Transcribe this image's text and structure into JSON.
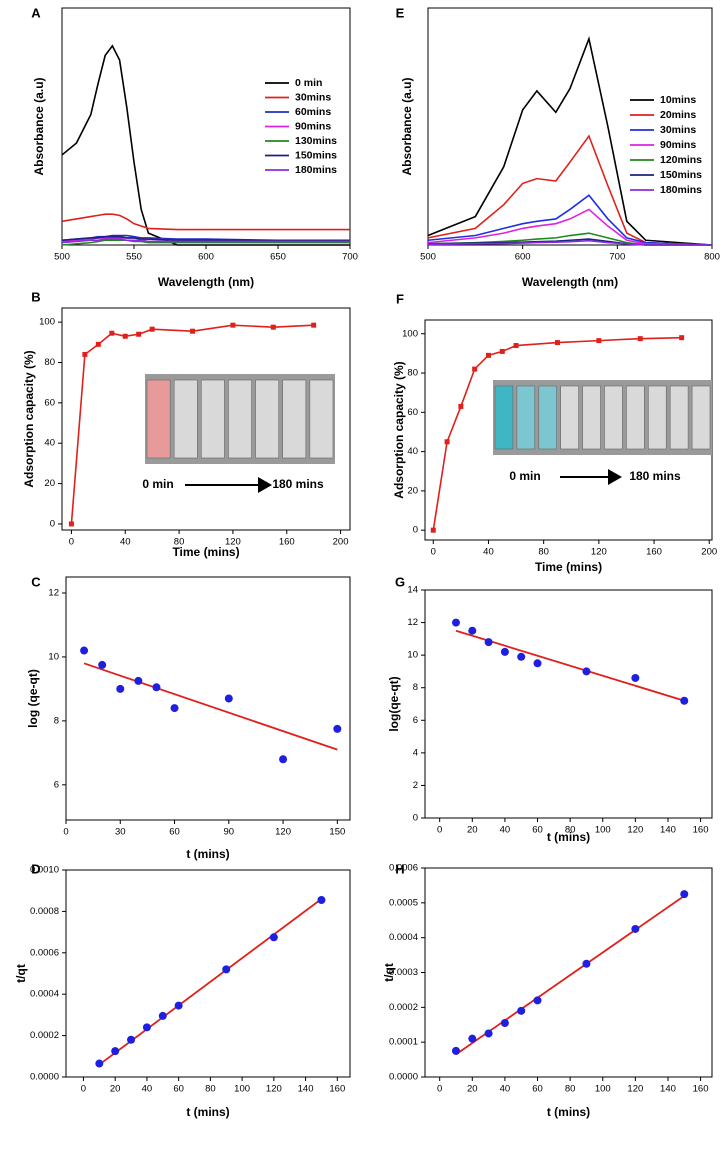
{
  "chart_data": [
    {
      "type": "line",
      "label": "A",
      "xlabel": "Wavelength (nm)",
      "ylabel": "Absorbance (a.u)",
      "xlim": [
        500,
        700
      ],
      "xticks": [
        500,
        550,
        600,
        650,
        700
      ],
      "ylim": [
        0,
        1
      ],
      "legend": "right",
      "x": [
        500,
        510,
        520,
        525,
        530,
        535,
        540,
        545,
        550,
        555,
        560,
        580,
        600,
        650,
        700
      ],
      "series": [
        {
          "name": "0 min",
          "color": "#000000",
          "values": [
            0.38,
            0.43,
            0.55,
            0.68,
            0.8,
            0.84,
            0.78,
            0.58,
            0.35,
            0.15,
            0.05,
            0.0,
            0.0,
            0.0,
            0.0
          ]
        },
        {
          "name": "30mins",
          "color": "#e0201b",
          "values": [
            0.1,
            0.11,
            0.12,
            0.125,
            0.13,
            0.13,
            0.125,
            0.11,
            0.09,
            0.08,
            0.07,
            0.065,
            0.065,
            0.065,
            0.065
          ]
        },
        {
          "name": "60mins",
          "color": "#1f2fbf",
          "values": [
            0.02,
            0.025,
            0.03,
            0.035,
            0.035,
            0.04,
            0.04,
            0.04,
            0.035,
            0.03,
            0.03,
            0.025,
            0.025,
            0.02,
            0.02
          ]
        },
        {
          "name": "90mins",
          "color": "#e020e0",
          "values": [
            0.015,
            0.02,
            0.025,
            0.03,
            0.03,
            0.03,
            0.03,
            0.03,
            0.03,
            0.025,
            0.025,
            0.02,
            0.02,
            0.02,
            0.02
          ]
        },
        {
          "name": "130mins",
          "color": "#1e8a1e",
          "values": [
            0.0,
            0.005,
            0.01,
            0.015,
            0.02,
            0.02,
            0.02,
            0.02,
            0.015,
            0.015,
            0.01,
            0.01,
            0.01,
            0.01,
            0.01
          ]
        },
        {
          "name": "150mins",
          "color": "#1a237e",
          "values": [
            0.02,
            0.025,
            0.03,
            0.03,
            0.035,
            0.035,
            0.035,
            0.03,
            0.03,
            0.025,
            0.025,
            0.02,
            0.02,
            0.02,
            0.02
          ]
        },
        {
          "name": "180mins",
          "color": "#8a2be2",
          "values": [
            0.01,
            0.015,
            0.02,
            0.02,
            0.025,
            0.025,
            0.025,
            0.02,
            0.02,
            0.02,
            0.015,
            0.015,
            0.015,
            0.015,
            0.015
          ]
        }
      ]
    },
    {
      "type": "line",
      "label": "B",
      "xlabel": "Time (mins)",
      "ylabel": "Adsorption capacity (%)",
      "marker": "square",
      "xlim": [
        -7,
        207
      ],
      "xticks": [
        0,
        40,
        80,
        120,
        160,
        200
      ],
      "ylim": [
        -3,
        107
      ],
      "yticks": [
        0,
        20,
        40,
        60,
        80,
        100
      ],
      "annotations": [
        "0 min",
        "180 mins"
      ],
      "x": [
        0,
        10,
        20,
        30,
        40,
        50,
        60,
        90,
        120,
        150,
        180
      ],
      "series": [
        {
          "color": "#e0201b",
          "values": [
            0,
            84,
            89,
            94.5,
            93,
            94,
            96.5,
            95.5,
            98.5,
            97.5,
            98.5
          ]
        }
      ]
    },
    {
      "type": "scatter",
      "label": "C",
      "xlabel": "t (mins)",
      "ylabel": "log (qe-qt)",
      "xlim": [
        0,
        157
      ],
      "xticks": [
        0,
        30,
        60,
        90,
        120,
        150
      ],
      "ylim": [
        4.9,
        12.5
      ],
      "yticks": [
        6,
        8,
        10,
        12
      ],
      "color": "#1f1fe0",
      "x": [
        10,
        20,
        30,
        40,
        50,
        60,
        90,
        120,
        150
      ],
      "values": [
        10.2,
        9.75,
        9.0,
        9.25,
        9.05,
        8.4,
        8.7,
        6.8,
        7.75
      ],
      "fit": {
        "color": "#e0201b",
        "x": [
          10,
          150
        ],
        "values": [
          9.8,
          7.1
        ]
      }
    },
    {
      "type": "scatter",
      "label": "D",
      "xlabel": "t (mins)",
      "ylabel": "t/qt",
      "xlim": [
        -11,
        168
      ],
      "xticks": [
        0,
        20,
        40,
        60,
        80,
        100,
        120,
        140,
        160
      ],
      "ylim": [
        0,
        0.001
      ],
      "yticks": [
        {
          "value": 0,
          "label": "0.0000"
        },
        {
          "value": 0.0002,
          "label": "0.0002"
        },
        {
          "value": 0.0004,
          "label": "0.0004"
        },
        {
          "value": 0.0006,
          "label": "0.0006"
        },
        {
          "value": 0.0008,
          "label": "0.0008"
        },
        {
          "value": 0.001,
          "label": "0.0010"
        }
      ],
      "color": "#1f1fe0",
      "x": [
        10,
        20,
        30,
        40,
        50,
        60,
        90,
        120,
        150
      ],
      "values": [
        6.5e-05,
        0.000125,
        0.00018,
        0.00024,
        0.000295,
        0.000345,
        0.00052,
        0.000675,
        0.000855
      ],
      "fit": {
        "color": "#e0201b",
        "x": [
          10,
          150
        ],
        "values": [
          6e-05,
          0.00086
        ]
      }
    },
    {
      "type": "line",
      "label": "E",
      "xlabel": "Wavelength (nm)",
      "ylabel": "Absorbance (a.u)",
      "xlim": [
        500,
        800
      ],
      "xticks": [
        500,
        600,
        700,
        800
      ],
      "ylim": [
        0,
        1
      ],
      "legend": "right",
      "x": [
        500,
        550,
        580,
        600,
        615,
        635,
        650,
        670,
        690,
        710,
        730,
        800
      ],
      "series": [
        {
          "name": "10mins",
          "color": "#000000",
          "values": [
            0.04,
            0.12,
            0.33,
            0.57,
            0.65,
            0.56,
            0.66,
            0.87,
            0.5,
            0.1,
            0.02,
            0.0
          ]
        },
        {
          "name": "20mins",
          "color": "#e0201b",
          "values": [
            0.03,
            0.07,
            0.17,
            0.26,
            0.28,
            0.27,
            0.35,
            0.46,
            0.25,
            0.05,
            0.01,
            0.0
          ]
        },
        {
          "name": "30mins",
          "color": "#1f2fe0",
          "values": [
            0.02,
            0.04,
            0.07,
            0.09,
            0.1,
            0.11,
            0.15,
            0.21,
            0.11,
            0.03,
            0.01,
            0.0
          ]
        },
        {
          "name": "90mins",
          "color": "#e020e0",
          "values": [
            0.01,
            0.03,
            0.05,
            0.07,
            0.08,
            0.09,
            0.11,
            0.15,
            0.08,
            0.02,
            0.005,
            0.0
          ]
        },
        {
          "name": "120mins",
          "color": "#1e8a1e",
          "values": [
            0.005,
            0.01,
            0.015,
            0.02,
            0.025,
            0.03,
            0.04,
            0.05,
            0.03,
            0.01,
            0.0,
            0.0
          ]
        },
        {
          "name": "150mins",
          "color": "#1a237e",
          "values": [
            0.005,
            0.008,
            0.01,
            0.012,
            0.014,
            0.016,
            0.02,
            0.025,
            0.015,
            0.005,
            0.0,
            0.0
          ]
        },
        {
          "name": "180mins",
          "color": "#8a2be2",
          "values": [
            0.003,
            0.005,
            0.006,
            0.008,
            0.01,
            0.012,
            0.014,
            0.018,
            0.01,
            0.005,
            0.0,
            0.0
          ]
        }
      ]
    },
    {
      "type": "line",
      "label": "F",
      "xlabel": "Time (mins)",
      "ylabel": "Adsorption capacity (%)",
      "marker": "square",
      "xlim": [
        -6,
        202
      ],
      "xticks": [
        0,
        40,
        80,
        120,
        160,
        200
      ],
      "ylim": [
        -5,
        107
      ],
      "yticks": [
        0,
        20,
        40,
        60,
        80,
        100
      ],
      "annotations": [
        "0 min",
        "180 mins"
      ],
      "x": [
        0,
        10,
        20,
        30,
        40,
        50,
        60,
        90,
        120,
        150,
        180
      ],
      "series": [
        {
          "color": "#e0201b",
          "values": [
            0,
            45,
            63,
            82,
            89,
            91,
            94,
            95.5,
            96.5,
            97.5,
            98
          ]
        }
      ]
    },
    {
      "type": "scatter",
      "label": "G",
      "xlabel": "t (mins)",
      "ylabel": "log(qe-qt)",
      "xlim": [
        -9,
        167
      ],
      "xticks": [
        0,
        20,
        40,
        60,
        80,
        100,
        120,
        140,
        160
      ],
      "ylim": [
        0,
        14
      ],
      "yticks": [
        0,
        2,
        4,
        6,
        8,
        10,
        12,
        14
      ],
      "color": "#1f1fe0",
      "x": [
        10,
        20,
        30,
        40,
        50,
        60,
        90,
        120,
        150
      ],
      "values": [
        12.0,
        11.5,
        10.8,
        10.2,
        9.9,
        9.5,
        9.0,
        8.6,
        7.2
      ],
      "fit": {
        "color": "#e0201b",
        "x": [
          10,
          150
        ],
        "values": [
          11.5,
          7.2
        ]
      }
    },
    {
      "type": "scatter",
      "label": "H",
      "xlabel": "t (mins)",
      "ylabel": "t/qt",
      "xlim": [
        -9,
        167
      ],
      "xticks": [
        0,
        20,
        40,
        60,
        80,
        100,
        120,
        140,
        160
      ],
      "ylim": [
        0,
        0.0006
      ],
      "yticks": [
        {
          "value": 0,
          "label": "0.0000"
        },
        {
          "value": 0.0001,
          "label": "0.0001"
        },
        {
          "value": 0.0002,
          "label": "0.0002"
        },
        {
          "value": 0.0003,
          "label": "0.0003"
        },
        {
          "value": 0.0004,
          "label": "0.0004"
        },
        {
          "value": 0.0005,
          "label": "0.0005"
        },
        {
          "value": 0.0006,
          "label": "0.0006"
        }
      ],
      "color": "#1f1fe0",
      "x": [
        10,
        20,
        30,
        40,
        50,
        60,
        90,
        120,
        150
      ],
      "values": [
        7.5e-05,
        0.00011,
        0.000125,
        0.000155,
        0.00019,
        0.00022,
        0.000325,
        0.000425,
        0.000525
      ],
      "fit": {
        "color": "#e0201b",
        "x": [
          10,
          150
        ],
        "values": [
          6.5e-05,
          0.00052
        ]
      }
    }
  ]
}
